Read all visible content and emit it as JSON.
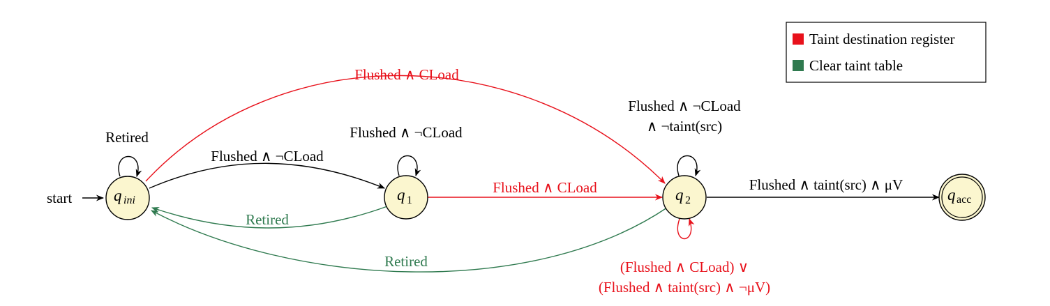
{
  "colors": {
    "node_fill": "#fbf6cf",
    "black": "#000000",
    "red": "#e8111b",
    "green": "#2f7a4f"
  },
  "start_label": "start",
  "states": {
    "q_ini": {
      "main": "q",
      "sub": "ini"
    },
    "q1": {
      "main": "q",
      "sub": "1"
    },
    "q2": {
      "main": "q",
      "sub": "2"
    },
    "q_acc": {
      "main": "q",
      "sub": "acc"
    }
  },
  "transitions": {
    "ini_self": "Retired",
    "ini_q1": "Flushed ∧ ¬CLoad",
    "ini_q2": "Flushed ∧ CLoad",
    "q1_self": "Flushed ∧ ¬CLoad",
    "q1_q2": "Flushed ∧ CLoad",
    "q1_ini": "Retired",
    "q2_self_top_line1": "Flushed ∧ ¬CLoad",
    "q2_self_top_line2": "∧ ¬taint(src)",
    "q2_acc": "Flushed ∧ taint(src) ∧ μV",
    "q2_ini": "Retired",
    "q2_self_bottom_line1": "(Flushed ∧ CLoad) ∨",
    "q2_self_bottom_line2": "(Flushed ∧ taint(src) ∧ ¬μV)"
  },
  "legend": {
    "items": [
      {
        "label": "Taint destination register",
        "color": "#e8111b"
      },
      {
        "label": "Clear taint table",
        "color": "#2f7a4f"
      }
    ]
  }
}
